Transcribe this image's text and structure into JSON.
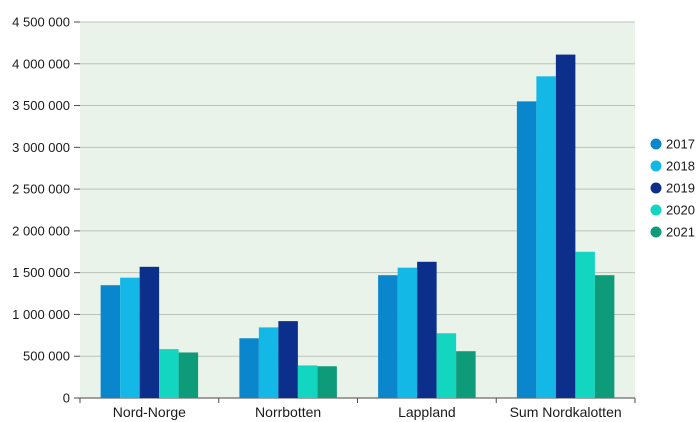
{
  "chart_data": {
    "type": "bar",
    "title": "",
    "xlabel": "",
    "ylabel": "",
    "categories": [
      "Nord-Norge",
      "Norrbotten",
      "Lappland",
      "Sum Nordkalotten"
    ],
    "series": [
      {
        "name": "2017",
        "color": "#0a87cc",
        "values": [
          1350000,
          715000,
          1470000,
          3550000
        ]
      },
      {
        "name": "2018",
        "color": "#14b8e6",
        "values": [
          1440000,
          845000,
          1560000,
          3850000
        ]
      },
      {
        "name": "2019",
        "color": "#0b2f8a",
        "values": [
          1570000,
          920000,
          1630000,
          4110000
        ]
      },
      {
        "name": "2020",
        "color": "#13d6c0",
        "values": [
          585000,
          390000,
          775000,
          1750000
        ]
      },
      {
        "name": "2021",
        "color": "#0e9b7a",
        "values": [
          545000,
          380000,
          560000,
          1470000
        ]
      }
    ],
    "ylim": [
      0,
      4500000
    ],
    "yticks": [
      0,
      500000,
      1000000,
      1500000,
      2000000,
      2500000,
      3000000,
      3500000,
      4000000,
      4500000
    ],
    "ytick_labels": [
      "0",
      "500 000",
      "1 000 000",
      "1 500 000",
      "2 000 000",
      "2 500 000",
      "3 000 000",
      "3 500 000",
      "4 000 000",
      "4 500 000"
    ],
    "grid": true,
    "legend_position": "right",
    "plot_background": "#eaf3e9",
    "gridline_color": "#b9c4b8"
  }
}
